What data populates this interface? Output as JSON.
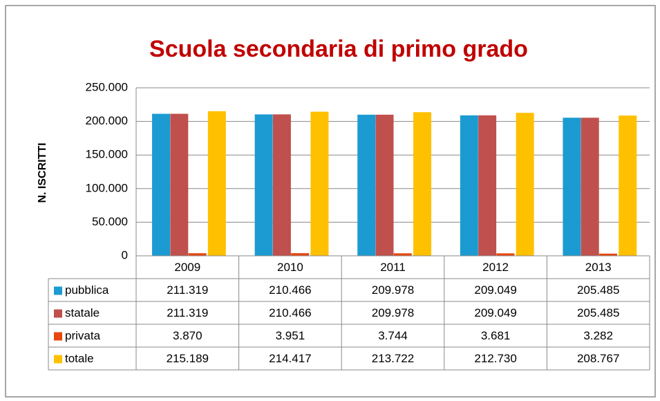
{
  "chart_data": {
    "type": "bar",
    "title": "Scuola secondaria di primo grado",
    "y_label": "N. ISCRITTI",
    "categories": [
      "2009",
      "2010",
      "2011",
      "2012",
      "2013"
    ],
    "series": [
      {
        "name": "pubblica",
        "color": "#1b9bd1",
        "values": [
          211319,
          210466,
          209978,
          209049,
          205485
        ],
        "value_labels": [
          "211.319",
          "210.466",
          "209.978",
          "209.049",
          "205.485"
        ]
      },
      {
        "name": "statale",
        "color": "#c0504d",
        "values": [
          211319,
          210466,
          209978,
          209049,
          205485
        ],
        "value_labels": [
          "211.319",
          "210.466",
          "209.978",
          "209.049",
          "205.485"
        ]
      },
      {
        "name": "privata",
        "color": "#e8470f",
        "values": [
          3870,
          3951,
          3744,
          3681,
          3282
        ],
        "value_labels": [
          "3.870",
          "3.951",
          "3.744",
          "3.681",
          "3.282"
        ]
      },
      {
        "name": "totale",
        "color": "#ffc000",
        "values": [
          215189,
          214417,
          213722,
          212730,
          208767
        ],
        "value_labels": [
          "215.189",
          "214.417",
          "213.722",
          "212.730",
          "208.767"
        ]
      }
    ],
    "ylim": [
      0,
      250000
    ],
    "yticks": [
      0,
      {
        "value": 50000,
        "label": "50.000"
      },
      {
        "value": 100000,
        "label": "100.000"
      },
      {
        "value": 150000,
        "label": "150.000"
      },
      {
        "value": 200000,
        "label": "200.000"
      },
      {
        "value": 250000,
        "label": "250.000"
      }
    ],
    "grid": true
  }
}
